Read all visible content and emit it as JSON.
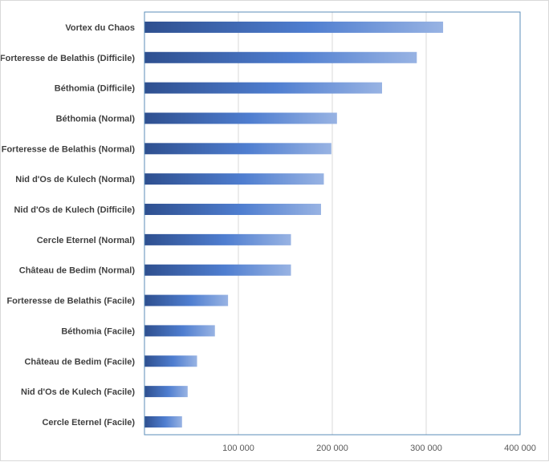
{
  "chart_data": {
    "type": "bar",
    "orientation": "horizontal",
    "categories": [
      "Vortex du Chaos",
      "Forteresse de Belathis (Difficile)",
      "Béthomia (Difficile)",
      "Béthomia (Normal)",
      "Forteresse de Belathis (Normal)",
      "Nid d'Os de Kulech (Normal)",
      "Nid d'Os de Kulech (Difficile)",
      "Cercle Eternel (Normal)",
      "Château de Bedim (Normal)",
      "Forteresse de Belathis (Facile)",
      "Béthomia (Facile)",
      "Château de Bedim (Facile)",
      "Nid d'Os de Kulech (Facile)",
      "Cercle Eternel (Facile)"
    ],
    "values": [
      318000,
      290000,
      253000,
      205000,
      199000,
      191000,
      188000,
      156000,
      156000,
      89000,
      75000,
      56000,
      46000,
      40000
    ],
    "xlim": [
      0,
      400000
    ],
    "x_ticks": [
      100000,
      200000,
      300000,
      400000
    ],
    "x_tick_labels": [
      "100 000",
      "200 000",
      "300 000",
      "400 000"
    ],
    "grid": "vertical",
    "bar_gradient": {
      "start": "#2e4f8f",
      "mid": "#4f7ed0",
      "end": "#98b3e3"
    },
    "axis_color": "#5b8db8",
    "grid_color": "#d9d9d9"
  }
}
